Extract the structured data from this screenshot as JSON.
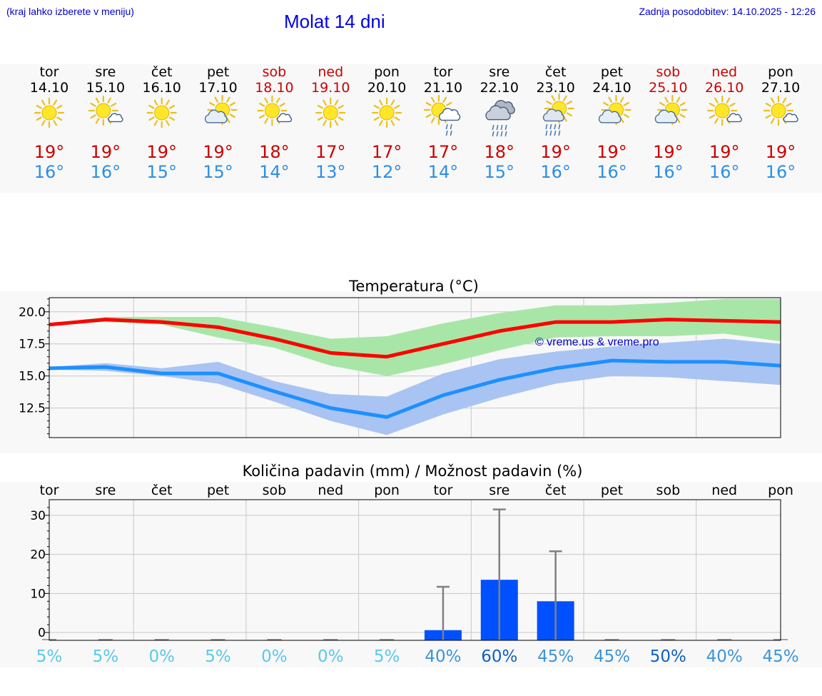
{
  "header": {
    "note": "(kraj lahko izberete v meniju)",
    "title": "Molat 14 dni",
    "updated": "Zadnja posodobitev: 14.10.2025 - 12:26"
  },
  "forecast": [
    {
      "day": "tor",
      "date": "14.10",
      "weekend": false,
      "icon": "sun-icon",
      "max": "19°",
      "min": "16°"
    },
    {
      "day": "sre",
      "date": "15.10",
      "weekend": false,
      "icon": "sun-small-cloud-icon",
      "max": "19°",
      "min": "16°"
    },
    {
      "day": "čet",
      "date": "16.10",
      "weekend": false,
      "icon": "sun-icon",
      "max": "19°",
      "min": "15°"
    },
    {
      "day": "pet",
      "date": "17.10",
      "weekend": false,
      "icon": "sun-cloud-icon",
      "max": "19°",
      "min": "15°"
    },
    {
      "day": "sob",
      "date": "18.10",
      "weekend": true,
      "icon": "sun-small-cloud-icon",
      "max": "18°",
      "min": "14°"
    },
    {
      "day": "ned",
      "date": "19.10",
      "weekend": true,
      "icon": "sun-icon",
      "max": "17°",
      "min": "13°"
    },
    {
      "day": "pon",
      "date": "20.10",
      "weekend": false,
      "icon": "sun-icon",
      "max": "17°",
      "min": "12°"
    },
    {
      "day": "tor",
      "date": "21.10",
      "weekend": false,
      "icon": "sun-cloud-rain-icon",
      "max": "17°",
      "min": "14°"
    },
    {
      "day": "sre",
      "date": "22.10",
      "weekend": false,
      "icon": "dark-cloud-rain-icon",
      "max": "18°",
      "min": "15°"
    },
    {
      "day": "čet",
      "date": "23.10",
      "weekend": false,
      "icon": "sun-cloud-heavy-rain-icon",
      "max": "19°",
      "min": "16°"
    },
    {
      "day": "pet",
      "date": "24.10",
      "weekend": false,
      "icon": "sun-cloud-icon",
      "max": "19°",
      "min": "16°"
    },
    {
      "day": "sob",
      "date": "25.10",
      "weekend": true,
      "icon": "sun-cloud-icon",
      "max": "19°",
      "min": "16°"
    },
    {
      "day": "ned",
      "date": "26.10",
      "weekend": true,
      "icon": "sun-small-cloud-icon",
      "max": "19°",
      "min": "16°"
    },
    {
      "day": "pon",
      "date": "27.10",
      "weekend": false,
      "icon": "sun-small-cloud-icon",
      "max": "19°",
      "min": "16°"
    }
  ],
  "colors": {
    "weekday_text": "#000000",
    "weekend_text": "#cc0000",
    "max_temp": "#cc0000",
    "min_temp": "#2b8fe6",
    "max_line": "#ff0000",
    "max_band": "#a8e6a8",
    "min_line": "#1e90ff",
    "min_band": "#a9c4f2",
    "precip_bar": "#0050ff",
    "precip_err": "#808080",
    "watermark": "#0000cc"
  },
  "watermark": "© vreme.us & vreme.pro",
  "chart_data": [
    {
      "type": "line",
      "title": "Temperatura (°C)",
      "x": [
        "14.10",
        "15.10",
        "16.10",
        "17.10",
        "18.10",
        "19.10",
        "20.10",
        "21.10",
        "22.10",
        "23.10",
        "24.10",
        "25.10",
        "26.10",
        "27.10"
      ],
      "ylim": [
        10.2,
        21.1
      ],
      "yticks": [
        "20.0",
        "17.5",
        "15.0",
        "12.5"
      ],
      "ytick_values": [
        20,
        17.5,
        15,
        12.5
      ],
      "grid": true,
      "series": [
        {
          "values": [
            19.0,
            19.4,
            19.2,
            18.8,
            17.9,
            16.8,
            16.5,
            17.5,
            18.5,
            19.2,
            19.2,
            19.4,
            19.3,
            19.2
          ],
          "band_low": [
            19.0,
            19.2,
            19.0,
            18.0,
            17.2,
            15.8,
            15.0,
            15.9,
            17.0,
            18.0,
            18.1,
            18.1,
            18.3,
            17.7
          ],
          "band_high": [
            19.1,
            19.6,
            19.6,
            19.6,
            18.8,
            17.9,
            18.1,
            19.1,
            19.9,
            20.5,
            20.5,
            20.7,
            21.0,
            21.0
          ]
        },
        {
          "values": [
            15.6,
            15.7,
            15.2,
            15.2,
            13.8,
            12.5,
            11.8,
            13.5,
            14.7,
            15.6,
            16.2,
            16.1,
            16.1,
            15.8
          ],
          "band_low": [
            15.5,
            15.4,
            15.0,
            14.4,
            13.0,
            11.5,
            10.4,
            12.0,
            13.3,
            14.4,
            15.0,
            14.9,
            14.6,
            14.3
          ],
          "band_high": [
            15.7,
            16.0,
            15.6,
            16.1,
            14.6,
            13.6,
            13.4,
            15.2,
            16.3,
            16.9,
            17.3,
            17.6,
            17.9,
            17.5
          ]
        }
      ]
    },
    {
      "type": "bar",
      "title": "Količina padavin (mm) / Možnost padavin (%)",
      "categories": [
        "tor",
        "sre",
        "čet",
        "pet",
        "sob",
        "ned",
        "pon",
        "tor",
        "sre",
        "čet",
        "pet",
        "sob",
        "ned",
        "pon"
      ],
      "values": [
        0,
        0,
        0,
        0,
        0,
        0,
        0,
        0.6,
        13.5,
        8.0,
        0,
        0,
        0,
        0
      ],
      "error_high": [
        0,
        0,
        0,
        0,
        0,
        0,
        0,
        11.7,
        31.5,
        20.8,
        0,
        0,
        0,
        0
      ],
      "ylim": [
        -2,
        34
      ],
      "yticks": [
        "30",
        "20",
        "10",
        "0"
      ],
      "ytick_values": [
        30,
        20,
        10,
        0
      ],
      "grid": true,
      "probability": [
        "5%",
        "5%",
        "0%",
        "5%",
        "0%",
        "0%",
        "5%",
        "40%",
        "60%",
        "45%",
        "45%",
        "50%",
        "40%",
        "45%"
      ],
      "probability_colors": [
        "#5bc8e8",
        "#5bc8e8",
        "#5bc8e8",
        "#5bc8e8",
        "#5bc8e8",
        "#5bc8e8",
        "#5bc8e8",
        "#3b94d9",
        "#1060c0",
        "#3b94d9",
        "#3b94d9",
        "#1060c0",
        "#3b94d9",
        "#3b94d9"
      ]
    }
  ]
}
